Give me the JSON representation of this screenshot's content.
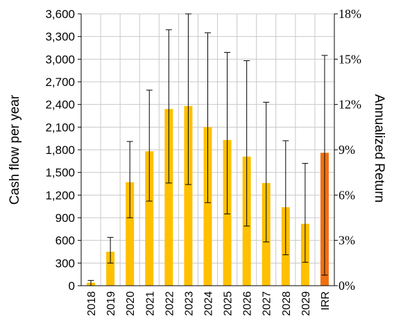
{
  "chart_data": {
    "type": "bar",
    "categories": [
      "2018",
      "2019",
      "2020",
      "2021",
      "2022",
      "2023",
      "2024",
      "2025",
      "2026",
      "2027",
      "2028",
      "2029",
      "IRR"
    ],
    "values": [
      40,
      450,
      1370,
      1780,
      2340,
      2380,
      2100,
      1930,
      1710,
      1360,
      1040,
      820,
      1760
    ],
    "error_low": [
      0,
      300,
      900,
      1120,
      1360,
      1340,
      1100,
      950,
      790,
      580,
      410,
      310,
      140
    ],
    "error_high": [
      70,
      640,
      1910,
      2590,
      3390,
      3600,
      3350,
      3090,
      2980,
      2430,
      1920,
      1620,
      3050
    ],
    "colors": {
      "bar": "#FFC000",
      "bar_highlight": "#F07010",
      "highlight_category": "IRR",
      "grid": "#C8C8C8",
      "axis": "#000000"
    },
    "ylabel": "Cash flow per year",
    "ylim": [
      0,
      3600
    ],
    "yticks": [
      "0",
      "300",
      "600",
      "900",
      "1,200",
      "1,500",
      "1,800",
      "2,100",
      "2,400",
      "2,700",
      "3,000",
      "3,300",
      "3,600"
    ],
    "y2label": "Annualized Return",
    "y2lim": [
      0,
      18
    ],
    "y2ticks": [
      "0%",
      "3%",
      "6%",
      "9%",
      "12%",
      "15%",
      "18%"
    ],
    "grid": "both",
    "legend": "none"
  }
}
